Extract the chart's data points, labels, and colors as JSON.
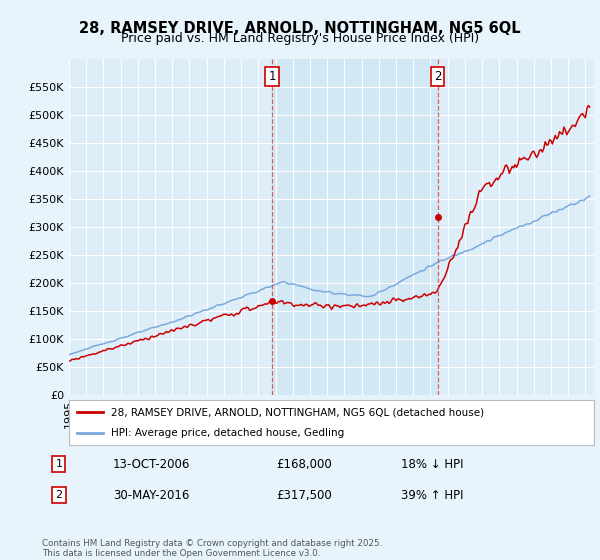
{
  "title": "28, RAMSEY DRIVE, ARNOLD, NOTTINGHAM, NG5 6QL",
  "subtitle": "Price paid vs. HM Land Registry's House Price Index (HPI)",
  "ylim": [
    0,
    600000
  ],
  "yticks": [
    0,
    50000,
    100000,
    150000,
    200000,
    250000,
    300000,
    350000,
    400000,
    450000,
    500000,
    550000
  ],
  "xlim_start": 1995.0,
  "xlim_end": 2025.5,
  "background_color": "#e8f4fc",
  "plot_bg_color": "#ddeeff",
  "plot_bg_highlight": "#cce4f7",
  "red_line_color": "#cc0000",
  "blue_line_color": "#7aaadd",
  "marker1_date": 2006.79,
  "marker1_price": 168000,
  "marker2_date": 2016.42,
  "marker2_price": 317500,
  "legend_label1": "28, RAMSEY DRIVE, ARNOLD, NOTTINGHAM, NG5 6QL (detached house)",
  "legend_label2": "HPI: Average price, detached house, Gedling",
  "note1_label": "1",
  "note1_date": "13-OCT-2006",
  "note1_price": "£168,000",
  "note1_hpi": "18% ↓ HPI",
  "note2_label": "2",
  "note2_date": "30-MAY-2016",
  "note2_price": "£317,500",
  "note2_hpi": "39% ↑ HPI",
  "footer": "Contains HM Land Registry data © Crown copyright and database right 2025.\nThis data is licensed under the Open Government Licence v3.0.",
  "title_fontsize": 10.5,
  "subtitle_fontsize": 9
}
